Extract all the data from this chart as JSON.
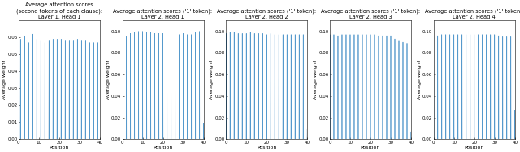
{
  "subplots": [
    {
      "title": "Average attention scores\n(second tokens of each clause):\nLayer 1, Head 1",
      "ylim": [
        0.0,
        0.07
      ],
      "yticks": [
        0.0,
        0.01,
        0.02,
        0.03,
        0.04,
        0.05,
        0.06
      ],
      "peak_positions": [
        1,
        3,
        5,
        7,
        9,
        11,
        13,
        15,
        17,
        19,
        21,
        23,
        25,
        27,
        29,
        31,
        33,
        35,
        37,
        39
      ],
      "peak_heights": [
        0.059,
        0.061,
        0.057,
        0.062,
        0.059,
        0.058,
        0.057,
        0.058,
        0.059,
        0.059,
        0.059,
        0.058,
        0.058,
        0.058,
        0.059,
        0.058,
        0.058,
        0.057,
        0.057,
        0.057
      ]
    },
    {
      "title": "Average attention scores ('1' token):\nLayer 2, Head 1",
      "ylim": [
        0.0,
        0.11
      ],
      "yticks": [
        0.0,
        0.02,
        0.04,
        0.06,
        0.08,
        0.1
      ],
      "peak_positions": [
        0,
        2,
        4,
        6,
        8,
        10,
        12,
        14,
        16,
        18,
        20,
        22,
        24,
        26,
        28,
        30,
        32,
        34,
        36,
        38,
        40
      ],
      "peak_heights": [
        0.093,
        0.095,
        0.098,
        0.099,
        0.1,
        0.1,
        0.099,
        0.099,
        0.098,
        0.098,
        0.098,
        0.098,
        0.098,
        0.098,
        0.097,
        0.098,
        0.097,
        0.097,
        0.099,
        0.1,
        0.015
      ]
    },
    {
      "title": "Average attention scores ('1' token):\nLayer 2, Head 2",
      "ylim": [
        0.0,
        0.11
      ],
      "yticks": [
        0.0,
        0.02,
        0.04,
        0.06,
        0.08,
        0.1
      ],
      "peak_positions": [
        0,
        2,
        4,
        6,
        8,
        10,
        12,
        14,
        16,
        18,
        20,
        22,
        24,
        26,
        28,
        30,
        32,
        34,
        36,
        38,
        40
      ],
      "peak_heights": [
        0.098,
        0.099,
        0.099,
        0.098,
        0.098,
        0.098,
        0.099,
        0.098,
        0.098,
        0.098,
        0.097,
        0.098,
        0.097,
        0.097,
        0.097,
        0.097,
        0.097,
        0.097,
        0.097,
        0.097,
        0.01
      ]
    },
    {
      "title": "Average attention scores ('1' token):\nLayer 2, Head 3",
      "ylim": [
        0.0,
        0.11
      ],
      "yticks": [
        0.0,
        0.02,
        0.04,
        0.06,
        0.08,
        0.1
      ],
      "peak_positions": [
        0,
        2,
        4,
        6,
        8,
        10,
        12,
        14,
        16,
        18,
        20,
        22,
        24,
        26,
        28,
        30,
        32,
        34,
        36,
        38,
        40
      ],
      "peak_heights": [
        0.097,
        0.097,
        0.096,
        0.097,
        0.097,
        0.097,
        0.097,
        0.097,
        0.097,
        0.097,
        0.097,
        0.097,
        0.096,
        0.096,
        0.096,
        0.096,
        0.093,
        0.091,
        0.09,
        0.089,
        0.007
      ]
    },
    {
      "title": "Average attention scores ('1' token):\nLayer 2, Head 4",
      "ylim": [
        0.0,
        0.11
      ],
      "yticks": [
        0.0,
        0.02,
        0.04,
        0.06,
        0.08,
        0.1
      ],
      "peak_positions": [
        0,
        2,
        4,
        6,
        8,
        10,
        12,
        14,
        16,
        18,
        20,
        22,
        24,
        26,
        28,
        30,
        32,
        34,
        36,
        38,
        40
      ],
      "peak_heights": [
        0.095,
        0.096,
        0.097,
        0.097,
        0.097,
        0.097,
        0.097,
        0.097,
        0.097,
        0.097,
        0.097,
        0.097,
        0.097,
        0.097,
        0.097,
        0.097,
        0.096,
        0.095,
        0.095,
        0.095,
        0.027
      ]
    }
  ],
  "xlabel": "Position",
  "ylabel": "Average weight",
  "xlim": [
    0,
    40
  ],
  "xticks": [
    0,
    10,
    20,
    30,
    40
  ],
  "line_color": "#5599cc",
  "background_color": "#ffffff",
  "title_fontsize": 4.8,
  "axis_label_fontsize": 4.5,
  "tick_fontsize": 4.0
}
